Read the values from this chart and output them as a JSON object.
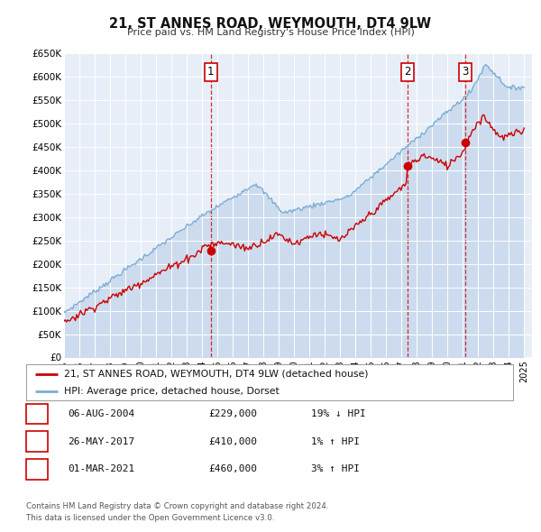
{
  "title": "21, ST ANNES ROAD, WEYMOUTH, DT4 9LW",
  "subtitle": "Price paid vs. HM Land Registry's House Price Index (HPI)",
  "ylim": [
    0,
    650000
  ],
  "yticks": [
    0,
    50000,
    100000,
    150000,
    200000,
    250000,
    300000,
    350000,
    400000,
    450000,
    500000,
    550000,
    600000,
    650000
  ],
  "ytick_labels": [
    "£0",
    "£50K",
    "£100K",
    "£150K",
    "£200K",
    "£250K",
    "£300K",
    "£350K",
    "£400K",
    "£450K",
    "£500K",
    "£550K",
    "£600K",
    "£650K"
  ],
  "xlim_start": 1995.0,
  "xlim_end": 2025.5,
  "background_color": "#e8eef8",
  "red_line_color": "#cc0000",
  "blue_line_color": "#7aadd4",
  "blue_fill_color": "#ccdcee",
  "sale_points": [
    {
      "year": 2004.58,
      "price": 229000,
      "label": "1"
    },
    {
      "year": 2017.39,
      "price": 410000,
      "label": "2"
    },
    {
      "year": 2021.16,
      "price": 460000,
      "label": "3"
    }
  ],
  "vline_years": [
    2004.58,
    2017.39,
    2021.16
  ],
  "legend_line1": "21, ST ANNES ROAD, WEYMOUTH, DT4 9LW (detached house)",
  "legend_line2": "HPI: Average price, detached house, Dorset",
  "table_data": [
    {
      "num": "1",
      "date": "06-AUG-2004",
      "price": "£229,000",
      "hpi": "19% ↓ HPI"
    },
    {
      "num": "2",
      "date": "26-MAY-2017",
      "price": "£410,000",
      "hpi": "1% ↑ HPI"
    },
    {
      "num": "3",
      "date": "01-MAR-2021",
      "price": "£460,000",
      "hpi": "3% ↑ HPI"
    }
  ],
  "footnote1": "Contains HM Land Registry data © Crown copyright and database right 2024.",
  "footnote2": "This data is licensed under the Open Government Licence v3.0."
}
